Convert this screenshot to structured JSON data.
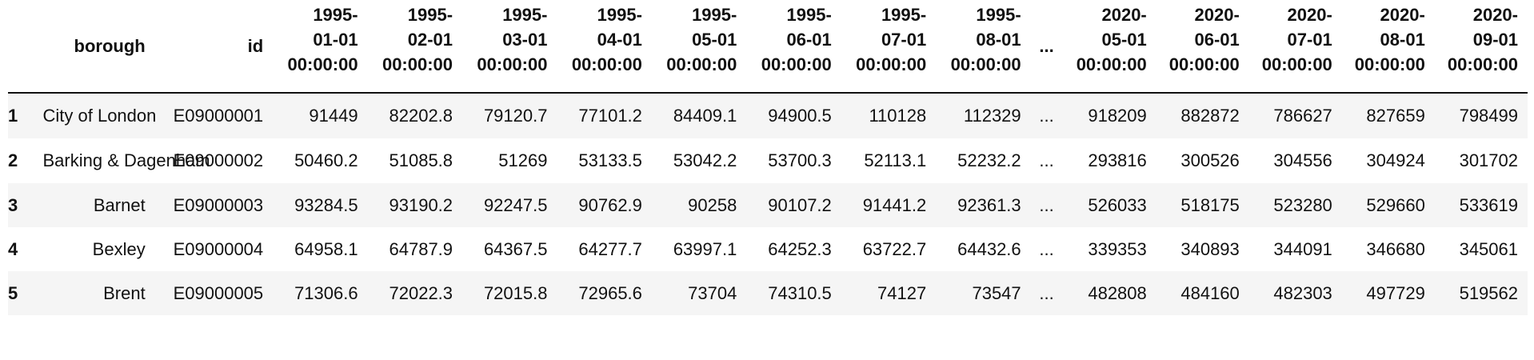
{
  "table": {
    "columns": {
      "borough": "borough",
      "id": "id",
      "ellipsis": "...",
      "dates_left": [
        [
          "1995-",
          "01-01",
          "00:00:00"
        ],
        [
          "1995-",
          "02-01",
          "00:00:00"
        ],
        [
          "1995-",
          "03-01",
          "00:00:00"
        ],
        [
          "1995-",
          "04-01",
          "00:00:00"
        ],
        [
          "1995-",
          "05-01",
          "00:00:00"
        ],
        [
          "1995-",
          "06-01",
          "00:00:00"
        ],
        [
          "1995-",
          "07-01",
          "00:00:00"
        ],
        [
          "1995-",
          "08-01",
          "00:00:00"
        ]
      ],
      "dates_right": [
        [
          "2020-",
          "05-01",
          "00:00:00"
        ],
        [
          "2020-",
          "06-01",
          "00:00:00"
        ],
        [
          "2020-",
          "07-01",
          "00:00:00"
        ],
        [
          "2020-",
          "08-01",
          "00:00:00"
        ],
        [
          "2020-",
          "09-01",
          "00:00:00"
        ]
      ]
    },
    "rows": [
      {
        "index": "1",
        "borough": "City of London",
        "id": "E09000001",
        "left": [
          "91449",
          "82202.8",
          "79120.7",
          "77101.2",
          "84409.1",
          "94900.5",
          "110128",
          "112329"
        ],
        "ellipsis": "...",
        "right": [
          "918209",
          "882872",
          "786627",
          "827659",
          "798499"
        ]
      },
      {
        "index": "2",
        "borough": "Barking & Dagenham",
        "id": "E09000002",
        "left": [
          "50460.2",
          "51085.8",
          "51269",
          "53133.5",
          "53042.2",
          "53700.3",
          "52113.1",
          "52232.2"
        ],
        "ellipsis": "...",
        "right": [
          "293816",
          "300526",
          "304556",
          "304924",
          "301702"
        ]
      },
      {
        "index": "3",
        "borough": "Barnet",
        "id": "E09000003",
        "left": [
          "93284.5",
          "93190.2",
          "92247.5",
          "90762.9",
          "90258",
          "90107.2",
          "91441.2",
          "92361.3"
        ],
        "ellipsis": "...",
        "right": [
          "526033",
          "518175",
          "523280",
          "529660",
          "533619"
        ]
      },
      {
        "index": "4",
        "borough": "Bexley",
        "id": "E09000004",
        "left": [
          "64958.1",
          "64787.9",
          "64367.5",
          "64277.7",
          "63997.1",
          "64252.3",
          "63722.7",
          "64432.6"
        ],
        "ellipsis": "...",
        "right": [
          "339353",
          "340893",
          "344091",
          "346680",
          "345061"
        ]
      },
      {
        "index": "5",
        "borough": "Brent",
        "id": "E09000005",
        "left": [
          "71306.6",
          "72022.3",
          "72015.8",
          "72965.6",
          "73704",
          "74310.5",
          "74127",
          "73547"
        ],
        "ellipsis": "...",
        "right": [
          "482808",
          "484160",
          "482303",
          "497729",
          "519562"
        ]
      }
    ]
  }
}
